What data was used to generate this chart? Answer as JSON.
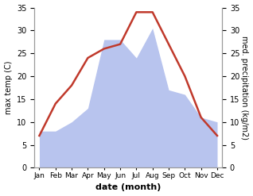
{
  "months": [
    "Jan",
    "Feb",
    "Mar",
    "Apr",
    "May",
    "Jun",
    "Jul",
    "Aug",
    "Sep",
    "Oct",
    "Nov",
    "Dec"
  ],
  "temperature": [
    7,
    14,
    18,
    24,
    26,
    27,
    34,
    34,
    27,
    20,
    11,
    7
  ],
  "precipitation": [
    8,
    8,
    10,
    13,
    28,
    28,
    24,
    30.5,
    17,
    16,
    11,
    10
  ],
  "temp_color": "#c0392b",
  "precip_fill_color": "#b8c4ee",
  "xlabel": "date (month)",
  "ylabel_left": "max temp (C)",
  "ylabel_right": "med. precipitation (kg/m2)",
  "ylim": [
    0,
    35
  ],
  "yticks": [
    0,
    5,
    10,
    15,
    20,
    25,
    30,
    35
  ],
  "bg_color": "#ffffff",
  "temp_linewidth": 1.8
}
